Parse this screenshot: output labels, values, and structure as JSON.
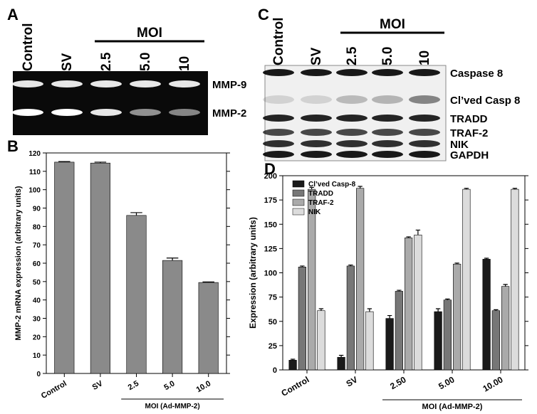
{
  "panels": {
    "A": {
      "label": "A",
      "lanes": [
        "Control",
        "SV",
        "2.5",
        "5.0",
        "10"
      ],
      "group": "MOI",
      "bands": [
        "MMP-9",
        "MMP-2"
      ]
    },
    "C": {
      "label": "C",
      "lanes": [
        "Control",
        "SV",
        "2.5",
        "5.0",
        "10"
      ],
      "group": "MOI",
      "bands": [
        "Caspase 8",
        "Cl’ved Casp 8",
        "TRADD",
        "TRAF-2",
        "NIK",
        "GAPDH"
      ]
    }
  },
  "chart_data": [
    {
      "panel_label": "B",
      "type": "bar",
      "ylabel": "MMP-2 mRNA expression (arbitrary units)",
      "xlabel": "MOI (Ad-MMP-2)",
      "categories": [
        "Control",
        "SV",
        "2.5",
        "5.0",
        "10.0"
      ],
      "values": [
        115,
        114.5,
        86,
        61.5,
        49.5
      ],
      "errors": [
        0.3,
        0.5,
        1.5,
        1.3,
        0.3
      ],
      "color": "#8a8a8a",
      "ylim": [
        0,
        120
      ],
      "yticks": [
        0,
        10,
        20,
        30,
        40,
        50,
        60,
        70,
        80,
        90,
        100,
        110,
        120
      ]
    },
    {
      "panel_label": "D",
      "type": "bar",
      "ylabel": "Expression (arbitrary units)",
      "xlabel": "MOI (Ad-MMP-2)",
      "categories": [
        "Control",
        "SV",
        "2.50",
        "5.00",
        "10.00"
      ],
      "series": [
        {
          "name": "Cl’ved Casp-8",
          "color": "#1a1a1a",
          "values": [
            10,
            13,
            53,
            60,
            114
          ],
          "errors": [
            1,
            2,
            3,
            3,
            1
          ]
        },
        {
          "name": "TRADD",
          "color": "#777777",
          "values": [
            106,
            107,
            81,
            72,
            61
          ],
          "errors": [
            1,
            1,
            1,
            1,
            1
          ]
        },
        {
          "name": "TRAF-2",
          "color": "#aaaaaa",
          "values": [
            186,
            187,
            136,
            109,
            86
          ],
          "errors": [
            2,
            2,
            1,
            1,
            2
          ]
        },
        {
          "name": "NIK",
          "color": "#dcdcdc",
          "values": [
            61,
            60,
            139,
            186,
            186
          ],
          "errors": [
            2,
            3,
            5,
            1,
            1
          ]
        }
      ],
      "ylim": [
        0,
        200
      ],
      "yticks": [
        0,
        25,
        50,
        75,
        100,
        125,
        150,
        175,
        200
      ]
    }
  ]
}
